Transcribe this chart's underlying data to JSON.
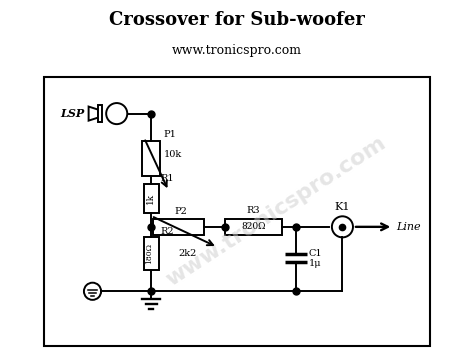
{
  "title": "Crossover for Sub-woofer",
  "subtitle": "www.tronicspro.com",
  "watermark": "www.tronicspro.com",
  "bg_color": "#ffffff",
  "line_color": "#000000",
  "R1_val": "1k",
  "R2_val": "180Ω",
  "R3_val": "820Ω",
  "C1_val": "1μ"
}
